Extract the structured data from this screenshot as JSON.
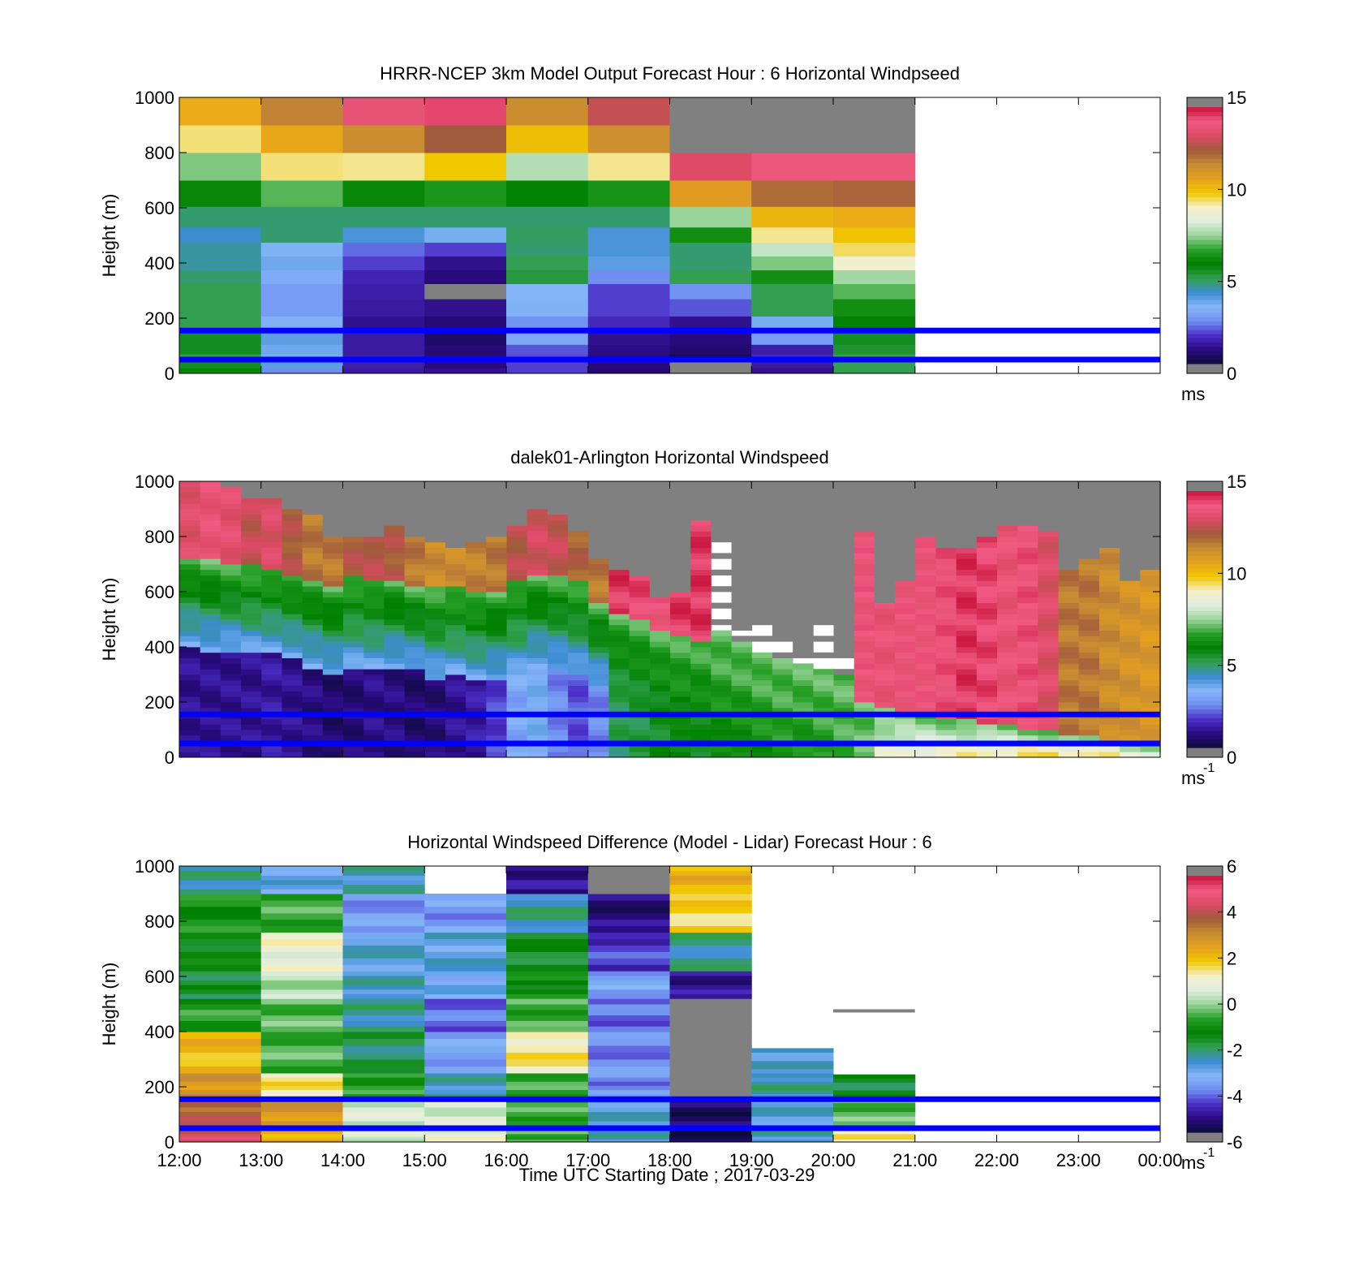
{
  "figure": {
    "xlabel": "Time UTC  Starting Date ; 2017-03-29",
    "x_ticks": [
      "12:00",
      "13:00",
      "14:00",
      "15:00",
      "16:00",
      "17:00",
      "18:00",
      "19:00",
      "20:00",
      "21:00",
      "22:00",
      "23:00",
      "00:00"
    ]
  },
  "colors": {
    "missing": "#808080",
    "reference_line": "#0000ff",
    "colormap": [
      "#808080",
      "#0c0c3c",
      "#2a0a80",
      "#4b2fc8",
      "#6f8ef0",
      "#86b6f8",
      "#3c8cd2",
      "#32a050",
      "#008000",
      "#28a028",
      "#9ad49a",
      "#e0eee0",
      "#f5f0c8",
      "#f0c800",
      "#e6a01e",
      "#c88c32",
      "#a05a3c",
      "#dc4a64",
      "#f05a82",
      "#c8143c",
      "#808080"
    ]
  },
  "reference_heights_m": [
    50,
    155
  ],
  "chart_data": [
    {
      "type": "heatmap",
      "title": "HRRR-NCEP 3km Model Output   Forecast Hour : 6 Horizontal Windpseed",
      "ylabel": "Height (m)",
      "ylim": [
        0,
        1000
      ],
      "y_ticks": [
        "0",
        "200",
        "400",
        "600",
        "800",
        "1000"
      ],
      "colorbar": {
        "range": [
          0,
          15
        ],
        "ticks": [
          "0",
          "5",
          "10",
          "15"
        ],
        "unit": "ms",
        "unit_sup": ""
      },
      "x_range_hours": [
        12,
        24
      ],
      "time_bins": [
        "12:00",
        "13:00",
        "14:00",
        "15:00",
        "16:00",
        "17:00",
        "18:00",
        "19:00",
        "20:00"
      ],
      "height_bins_m": [
        10,
        30,
        55,
        85,
        125,
        175,
        240,
        300,
        350,
        400,
        450,
        500,
        560,
        650,
        750,
        850,
        950
      ],
      "values": [
        [
          6.0,
          2.5,
          1.2,
          1.0,
          1.8,
          0.7,
          null,
          1.0,
          5.0
        ],
        [
          5.5,
          3.8,
          1.3,
          0.8,
          1.8,
          0.8,
          null,
          1.2,
          5.0
        ],
        [
          5.0,
          3.5,
          1.3,
          0.8,
          1.9,
          0.8,
          0.3,
          1.5,
          5.0
        ],
        [
          5.5,
          3.6,
          1.2,
          0.7,
          2.0,
          0.9,
          0.6,
          1.3,
          5.3
        ],
        [
          5.5,
          3.8,
          1.2,
          0.5,
          3.0,
          1.0,
          0.8,
          2.8,
          5.5
        ],
        [
          5.0,
          3.2,
          1.0,
          0.7,
          2.6,
          1.5,
          1.0,
          3.5,
          5.8
        ],
        [
          5.0,
          2.8,
          1.2,
          1.0,
          3.4,
          1.8,
          2.0,
          5.0,
          6.2
        ],
        [
          5.0,
          2.8,
          1.3,
          null,
          3.3,
          1.8,
          2.6,
          5.0,
          7.0
        ],
        [
          4.8,
          3.1,
          1.4,
          0.8,
          5.2,
          2.5,
          5.0,
          6.2,
          7.6
        ],
        [
          4.5,
          3.6,
          1.8,
          1.0,
          5.0,
          3.8,
          4.8,
          7.3,
          9.0
        ],
        [
          4.5,
          3.4,
          2.2,
          1.8,
          4.8,
          4.0,
          4.8,
          8.0,
          9.6
        ],
        [
          4.2,
          4.8,
          4.0,
          3.5,
          4.9,
          4.0,
          6.2,
          9.4,
          10.1
        ],
        [
          4.8,
          4.8,
          4.8,
          4.8,
          4.8,
          4.8,
          7.5,
          10.4,
          10.6
        ],
        [
          6.0,
          7.0,
          6.0,
          6.4,
          5.9,
          6.3,
          11.0,
          12.2,
          12.3
        ],
        [
          7.3,
          9.5,
          9.4,
          10.0,
          7.8,
          9.4,
          13.4,
          14.0,
          14.0
        ],
        [
          9.5,
          10.7,
          11.6,
          12.5,
          10.2,
          11.5,
          null,
          null,
          null
        ],
        [
          10.6,
          11.8,
          13.8,
          14.4,
          11.6,
          13.0,
          null,
          null,
          null
        ]
      ]
    },
    {
      "type": "heatmap",
      "title": "dalek01-Arlington  Horizontal Windspeed",
      "ylabel": "Height (m)",
      "ylim": [
        0,
        1000
      ],
      "y_ticks": [
        "0",
        "200",
        "400",
        "600",
        "800",
        "1000"
      ],
      "colorbar": {
        "range": [
          0,
          15
        ],
        "ticks": [
          "0",
          "5",
          "10",
          "15"
        ],
        "unit": "ms",
        "unit_sup": "-1"
      },
      "x_range_hours": [
        12,
        24
      ],
      "profile_times_h": [
        12.13,
        12.38,
        12.63,
        12.88,
        13.13,
        13.38,
        13.63,
        13.88,
        14.13,
        14.38,
        14.63,
        14.88,
        15.13,
        15.38,
        15.63,
        15.88,
        16.13,
        16.38,
        16.63,
        16.88,
        17.13,
        17.38,
        17.63,
        17.88,
        18.13,
        18.38,
        18.63,
        18.88,
        19.13,
        19.38,
        19.63,
        19.88,
        20.13,
        20.38,
        20.63,
        20.88,
        21.13,
        21.38,
        21.63,
        21.88,
        22.13,
        22.38,
        22.63,
        22.88,
        23.13,
        23.38,
        23.63,
        23.88
      ],
      "profile_top_m": [
        1000,
        990,
        975,
        935,
        940,
        900,
        880,
        790,
        790,
        800,
        840,
        800,
        775,
        760,
        770,
        800,
        830,
        900,
        880,
        810,
        710,
        670,
        650,
        580,
        600,
        850,
        800,
        460,
        500,
        440,
        380,
        480,
        380,
        820,
        560,
        640,
        800,
        760,
        760,
        800,
        830,
        840,
        820,
        680,
        720,
        750,
        640,
        680
      ],
      "profile_bands_m": [
        [
          400,
          720
        ],
        [
          390,
          710
        ],
        [
          390,
          700
        ],
        [
          380,
          690
        ],
        [
          380,
          680
        ],
        [
          360,
          660
        ],
        [
          330,
          640
        ],
        [
          300,
          620
        ],
        [
          330,
          650
        ],
        [
          320,
          640
        ],
        [
          330,
          640
        ],
        [
          320,
          620
        ],
        [
          290,
          610
        ],
        [
          300,
          610
        ],
        [
          280,
          590
        ],
        [
          280,
          600
        ],
        [
          300,
          640
        ],
        [
          330,
          660
        ],
        [
          320,
          660
        ],
        [
          300,
          640
        ],
        [
          260,
          560
        ],
        [
          230,
          520
        ],
        [
          200,
          500
        ],
        [
          180,
          460
        ],
        [
          160,
          440
        ],
        [
          120,
          420
        ],
        [
          100,
          380
        ],
        [
          80,
          340
        ],
        [
          60,
          300
        ],
        [
          50,
          280
        ],
        [
          40,
          260
        ],
        [
          30,
          240
        ],
        [
          20,
          220
        ],
        [
          10,
          200
        ],
        [
          0,
          180
        ],
        [
          0,
          160
        ],
        [
          0,
          150
        ],
        [
          0,
          140
        ],
        [
          0,
          130
        ],
        [
          0,
          120
        ],
        [
          0,
          110
        ],
        [
          0,
          100
        ],
        [
          0,
          90
        ],
        [
          0,
          80
        ],
        [
          0,
          70
        ],
        [
          0,
          60
        ],
        [
          0,
          50
        ],
        [
          0,
          40
        ]
      ],
      "profile_surface_speed_ms": [
        1.0,
        1.0,
        1.0,
        1.0,
        1.2,
        1.0,
        0.8,
        0.6,
        0.7,
        0.9,
        0.8,
        0.6,
        0.7,
        1.0,
        1.2,
        1.8,
        3.0,
        3.4,
        2.5,
        2.0,
        2.5,
        5.0,
        5.2,
        5.5,
        5.8,
        5.6,
        6.0,
        6.0,
        6.2,
        6.4,
        6.3,
        6.5,
        6.8,
        7.2,
        8.6,
        9.0,
        9.0,
        9.2,
        9.4,
        9.6,
        9.5,
        9.8,
        9.9,
        9.8,
        10.0,
        9.7,
        9.0,
        9.2
      ],
      "profile_upper_speed_ms": [
        13.5,
        13.8,
        13.6,
        13.0,
        13.4,
        12.6,
        12.0,
        12.0,
        12.6,
        12.8,
        12.6,
        12.0,
        11.6,
        11.6,
        11.8,
        12.0,
        12.8,
        13.2,
        13.0,
        12.4,
        12.0,
        14.6,
        14.4,
        14.0,
        14.6,
        14.6,
        null,
        null,
        null,
        null,
        null,
        null,
        null,
        14.0,
        13.8,
        14.0,
        14.0,
        14.2,
        14.6,
        14.4,
        13.8,
        14.2,
        13.4,
        12.0,
        12.0,
        11.6,
        11.4,
        11.2
      ]
    },
    {
      "type": "heatmap",
      "title": "Horizontal Windspeed Difference (Model - Lidar) Forecast Hour : 6",
      "ylabel": "Height (m)",
      "ylim": [
        0,
        1000
      ],
      "y_ticks": [
        "0",
        "200",
        "400",
        "600",
        "800",
        "1000"
      ],
      "colorbar": {
        "range": [
          -6,
          6
        ],
        "ticks": [
          "-6",
          "-4",
          "-2",
          "0",
          "2",
          "4",
          "6"
        ],
        "unit": "ms",
        "unit_sup": "-1"
      },
      "x_range_hours": [
        12,
        24
      ],
      "time_bins": [
        "12:00",
        "13:00",
        "14:00",
        "15:00",
        "16:00",
        "17:00",
        "18:00",
        "19:00",
        "20:00"
      ],
      "column_top_m": [
        1000,
        1000,
        1000,
        900,
        1000,
        1000,
        1000,
        340,
        245
      ],
      "layers_m": [
        {
          "from": 0,
          "to": 60,
          "values": [
            4.6,
            2.4,
            0.5,
            1.0,
            -0.5,
            -2.6,
            -6.0,
            -2.6,
            1.5
          ]
        },
        {
          "from": 60,
          "to": 160,
          "values": [
            4.0,
            3.0,
            0.6,
            0.6,
            -0.6,
            -2.8,
            -5.6,
            -2.8,
            -0.4
          ]
        },
        {
          "from": 160,
          "to": 250,
          "values": [
            3.0,
            1.6,
            -0.8,
            -2.6,
            -0.6,
            -4.0,
            null,
            -2.4,
            -1.8
          ]
        },
        {
          "from": 250,
          "to": 400,
          "values": [
            2.2,
            -0.5,
            -2.0,
            -3.6,
            1.5,
            -4.0,
            null,
            -2.8,
            null
          ]
        },
        {
          "from": 400,
          "to": 520,
          "values": [
            -0.8,
            -0.4,
            -2.4,
            -4.2,
            -0.6,
            -4.2,
            null,
            null,
            null
          ]
        },
        {
          "from": 520,
          "to": 620,
          "values": [
            -1.8,
            0.2,
            -2.6,
            -3.2,
            -1.2,
            -3.6,
            -5.2,
            null,
            null
          ]
        },
        {
          "from": 620,
          "to": 760,
          "values": [
            -1.4,
            1.0,
            -2.8,
            -2.9,
            -1.6,
            -4.6,
            -2.4,
            null,
            null
          ]
        },
        {
          "from": 760,
          "to": 900,
          "values": [
            -1.0,
            -0.6,
            -3.8,
            -3.8,
            -2.4,
            -5.4,
            1.8,
            null,
            null
          ]
        },
        {
          "from": 900,
          "to": 1000,
          "values": [
            -2.4,
            -3.0,
            -2.6,
            null,
            -5.2,
            null,
            2.4,
            null,
            null
          ]
        }
      ],
      "isolated_segments": [
        {
          "time_from_h": 20.0,
          "time_to_h": 21.0,
          "height_m": 475,
          "value": null
        }
      ]
    }
  ]
}
